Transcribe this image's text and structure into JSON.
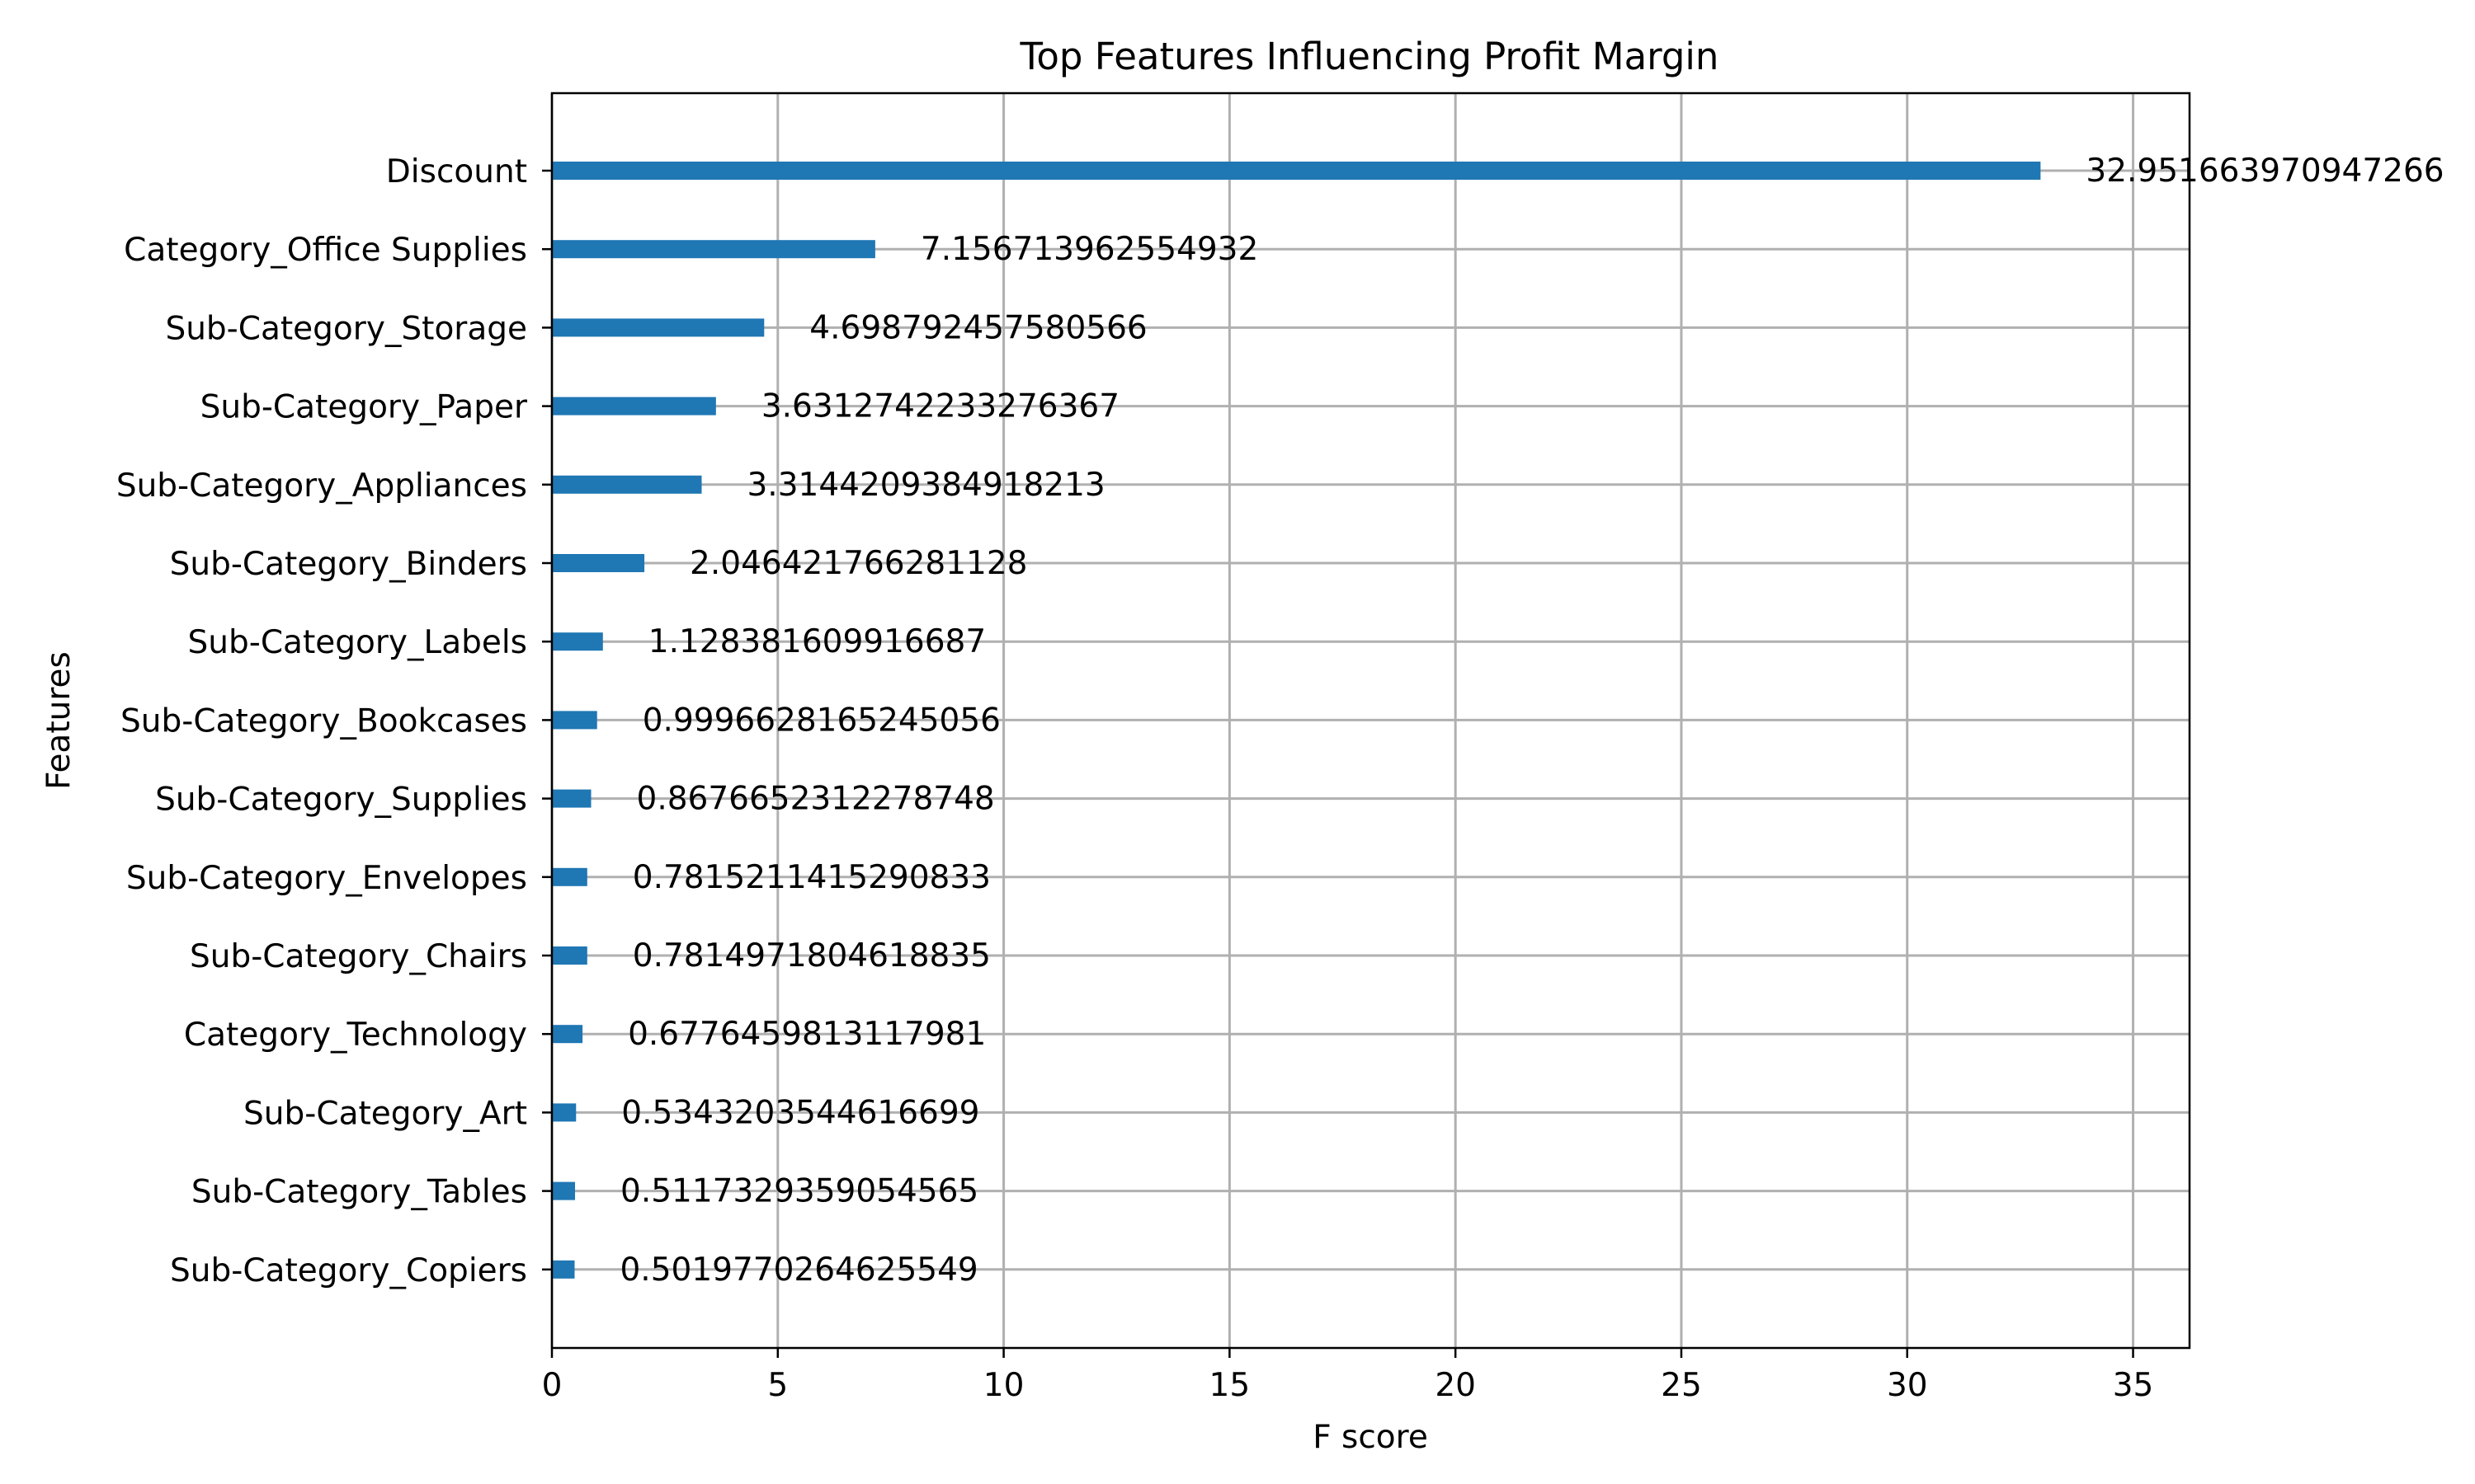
{
  "chart_data": {
    "type": "bar",
    "orientation": "horizontal",
    "title": "Top Features Influencing Profit Margin",
    "xlabel": "F score",
    "ylabel": "Features",
    "xlim": [
      0,
      36.25
    ],
    "xticks": [
      0,
      5,
      10,
      15,
      20,
      25,
      30,
      35
    ],
    "xtick_labels": [
      "0",
      "5",
      "10",
      "15",
      "20",
      "25",
      "30",
      "35"
    ],
    "grid": true,
    "bar_color": "#1f77b4",
    "categories": [
      "Discount",
      "Category_Office Supplies",
      "Sub-Category_Storage",
      "Sub-Category_Paper",
      "Sub-Category_Appliances",
      "Sub-Category_Binders",
      "Sub-Category_Labels",
      "Sub-Category_Bookcases",
      "Sub-Category_Supplies",
      "Sub-Category_Envelopes",
      "Sub-Category_Chairs",
      "Category_Technology",
      "Sub-Category_Art",
      "Sub-Category_Tables",
      "Sub-Category_Copiers"
    ],
    "values": [
      32.951663970947266,
      7.156713962554932,
      4.698792457580566,
      3.6312742233276367,
      3.3144209384918213,
      2.046421766281128,
      1.128381609916687,
      0.9996628165245056,
      0.8676652312278748,
      0.7815211415290833,
      0.7814971804618835,
      0.6776459813117981,
      0.5343203544616699,
      0.5117329359054565,
      0.5019770264625549
    ],
    "value_labels": [
      "32.951663970947266",
      "7.156713962554932",
      "4.698792457580566",
      "3.6312742233276367",
      "3.3144209384918213",
      "2.046421766281128",
      "1.128381609916687",
      "0.9996628165245056",
      "0.8676652312278748",
      "0.7815211415290833",
      "0.7814971804618835",
      "0.6776459813117981",
      "0.5343203544616699",
      "0.5117329359054565",
      "0.5019770264625549"
    ]
  }
}
